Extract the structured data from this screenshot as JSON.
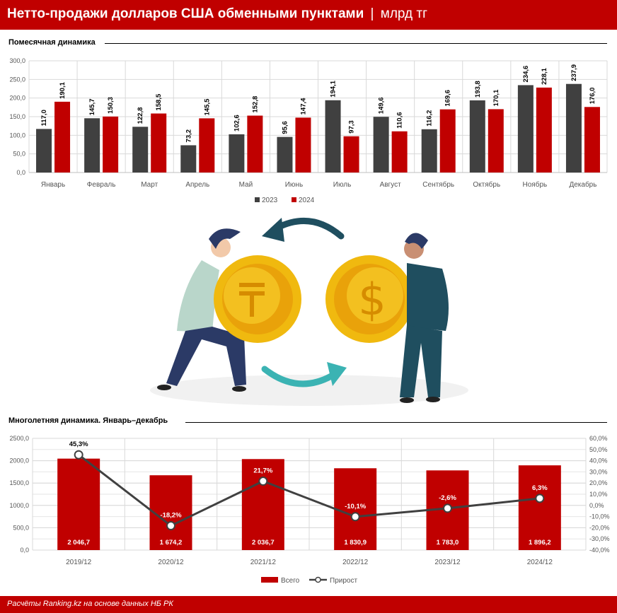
{
  "header": {
    "title": "Нетто-продажи долларов США обменными пунктами",
    "separator": "|",
    "unit": "млрд тг"
  },
  "sections": {
    "monthly": "Помесячная динамика",
    "multiyear": "Многолетняя динамика. Январь–декабрь"
  },
  "footer": {
    "source": "Расчёты Ranking.kz на основе данных НБ РК"
  },
  "colors": {
    "brand": "#c00000",
    "series_2023": "#404040",
    "series_2024": "#c00000",
    "growth_line": "#404040"
  },
  "illustration": {
    "icons": [
      "tenge-coin-icon",
      "dollar-coin-icon",
      "exchange-arrows-icon"
    ]
  },
  "chart_data": [
    {
      "type": "bar",
      "categories": [
        "Январь",
        "Февраль",
        "Март",
        "Апрель",
        "Май",
        "Июнь",
        "Июль",
        "Август",
        "Сентябрь",
        "Октябрь",
        "Ноябрь",
        "Декабрь"
      ],
      "series": [
        {
          "name": "2023",
          "values": [
            117.0,
            145.7,
            122.8,
            73.2,
            102.6,
            95.6,
            194.1,
            149.6,
            116.2,
            193.8,
            234.6,
            237.9
          ],
          "labels": [
            "117,0",
            "145,7",
            "122,8",
            "73,2",
            "102,6",
            "95,6",
            "194,1",
            "149,6",
            "116,2",
            "193,8",
            "234,6",
            "237,9"
          ]
        },
        {
          "name": "2024",
          "values": [
            190.1,
            150.3,
            158.5,
            145.5,
            152.8,
            147.4,
            97.3,
            110.6,
            169.6,
            170.1,
            228.1,
            176.0
          ],
          "labels": [
            "190,1",
            "150,3",
            "158,5",
            "145,5",
            "152,8",
            "147,4",
            "97,3",
            "110,6",
            "169,6",
            "170,1",
            "228,1",
            "176,0"
          ]
        }
      ],
      "ylim": [
        0,
        300
      ],
      "yticks": [
        "0,0",
        "50,0",
        "100,0",
        "150,0",
        "200,0",
        "250,0",
        "300,0"
      ],
      "grid": true,
      "legend": "bottom"
    },
    {
      "type": "bar",
      "categories": [
        "2019/12",
        "2020/12",
        "2021/12",
        "2022/12",
        "2023/12",
        "2024/12"
      ],
      "series": [
        {
          "name": "Всего",
          "type": "bar",
          "values": [
            2046.7,
            1674.2,
            2036.7,
            1830.9,
            1783.0,
            1896.2
          ],
          "labels": [
            "2 046,7",
            "1 674,2",
            "2 036,7",
            "1 830,9",
            "1 783,0",
            "1 896,2"
          ]
        },
        {
          "name": "Прирост",
          "type": "line",
          "axis": "right",
          "values": [
            45.3,
            -18.2,
            21.7,
            -10.1,
            -2.6,
            6.3
          ],
          "labels": [
            "45,3%",
            "-18,2%",
            "21,7%",
            "-10,1%",
            "-2,6%",
            "6,3%"
          ]
        }
      ],
      "ylim": [
        0,
        2500
      ],
      "yticks": [
        "0,0",
        "500,0",
        "1000,0",
        "1500,0",
        "2000,0",
        "2500,0"
      ],
      "y2lim": [
        -40,
        60
      ],
      "y2ticks": [
        "-40,0%",
        "-30,0%",
        "-20,0%",
        "-10,0%",
        "0,0%",
        "10,0%",
        "20,0%",
        "30,0%",
        "40,0%",
        "50,0%",
        "60,0%"
      ],
      "grid": true,
      "legend": "bottom"
    }
  ]
}
